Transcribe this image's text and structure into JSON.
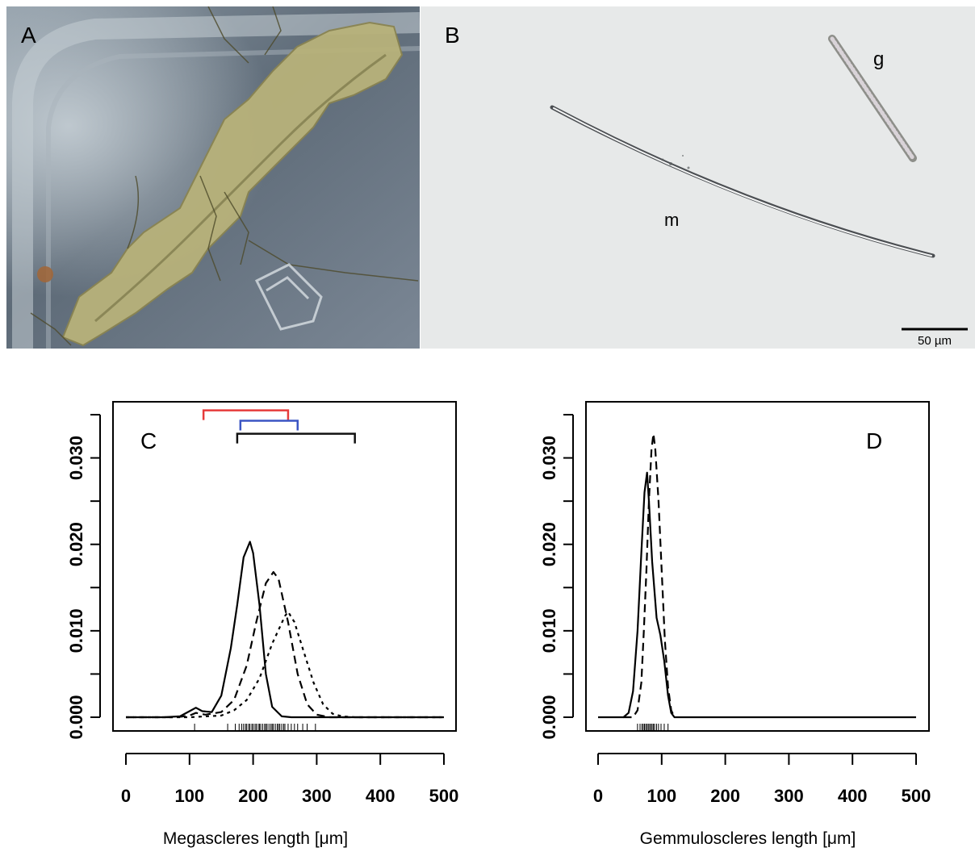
{
  "photo_panels": {
    "a": {
      "letter": "A"
    },
    "b": {
      "letter": "B",
      "label_m": "m",
      "label_g": "g",
      "scale_bar": "50 µm"
    }
  },
  "chart_data": [
    {
      "type": "line",
      "panel_letter": "C",
      "xlabel": "Megascleres length [μm]",
      "ylabel": "",
      "xlim": [
        0,
        500
      ],
      "ylim": [
        0,
        0.035
      ],
      "xticks": [
        0,
        100,
        200,
        300,
        400,
        500
      ],
      "yticks": [
        0.0,
        0.005,
        0.01,
        0.015,
        0.02,
        0.025,
        0.03,
        0.035
      ],
      "ytick_labels": [
        "0.000",
        "",
        "0.010",
        "",
        "0.020",
        "",
        "0.030",
        ""
      ],
      "series": [
        {
          "style": "solid",
          "points": [
            [
              0,
              0
            ],
            [
              60,
              0
            ],
            [
              85,
              0.0001
            ],
            [
              100,
              0.0007
            ],
            [
              110,
              0.0011
            ],
            [
              120,
              0.0007
            ],
            [
              135,
              0.0006
            ],
            [
              150,
              0.0025
            ],
            [
              165,
              0.008
            ],
            [
              175,
              0.013
            ],
            [
              185,
              0.0185
            ],
            [
              195,
              0.0203
            ],
            [
              200,
              0.019
            ],
            [
              210,
              0.013
            ],
            [
              220,
              0.005
            ],
            [
              230,
              0.0012
            ],
            [
              245,
              0.0001
            ],
            [
              260,
              0
            ],
            [
              500,
              0
            ]
          ]
        },
        {
          "style": "dashed",
          "points": [
            [
              0,
              0
            ],
            [
              80,
              0
            ],
            [
              100,
              0.0002
            ],
            [
              110,
              0.0005
            ],
            [
              125,
              0.0003
            ],
            [
              150,
              0.0006
            ],
            [
              170,
              0.002
            ],
            [
              190,
              0.006
            ],
            [
              205,
              0.011
            ],
            [
              220,
              0.0155
            ],
            [
              232,
              0.0168
            ],
            [
              240,
              0.016
            ],
            [
              255,
              0.011
            ],
            [
              270,
              0.005
            ],
            [
              285,
              0.0015
            ],
            [
              300,
              0.0003
            ],
            [
              320,
              0
            ],
            [
              500,
              0
            ]
          ]
        },
        {
          "style": "dotted",
          "points": [
            [
              0,
              0
            ],
            [
              100,
              0
            ],
            [
              150,
              0.0002
            ],
            [
              170,
              0.0008
            ],
            [
              190,
              0.002
            ],
            [
              210,
              0.0045
            ],
            [
              230,
              0.0085
            ],
            [
              250,
              0.0117
            ],
            [
              255,
              0.0122
            ],
            [
              265,
              0.011
            ],
            [
              280,
              0.0075
            ],
            [
              295,
              0.004
            ],
            [
              310,
              0.0015
            ],
            [
              325,
              0.0004
            ],
            [
              340,
              0.0001
            ],
            [
              360,
              0
            ],
            [
              500,
              0
            ]
          ]
        }
      ],
      "ranges": [
        {
          "color": "#e63b3b",
          "from": 122,
          "to": 255,
          "level": 0.0355
        },
        {
          "color": "#3b55c4",
          "from": 180,
          "to": 270,
          "level": 0.0343
        },
        {
          "color": "#111111",
          "from": 175,
          "to": 360,
          "level": 0.0328
        }
      ],
      "rug": [
        108,
        160,
        172,
        178,
        182,
        185,
        188,
        190,
        193,
        195,
        198,
        200,
        203,
        205,
        208,
        210,
        212,
        215,
        218,
        220,
        222,
        225,
        228,
        230,
        232,
        235,
        238,
        240,
        242,
        245,
        248,
        250,
        255,
        260,
        265,
        270,
        278,
        285,
        298
      ]
    },
    {
      "type": "line",
      "panel_letter": "D",
      "xlabel": "Gemmuloscleres length [μm]",
      "ylabel": "",
      "xlim": [
        0,
        500
      ],
      "ylim": [
        0,
        0.035
      ],
      "xticks": [
        0,
        100,
        200,
        300,
        400,
        500
      ],
      "yticks": [
        0.0,
        0.005,
        0.01,
        0.015,
        0.02,
        0.025,
        0.03,
        0.035
      ],
      "ytick_labels": [
        "0.000",
        "",
        "0.010",
        "",
        "0.020",
        "",
        "0.030",
        ""
      ],
      "series": [
        {
          "style": "solid",
          "points": [
            [
              0,
              0
            ],
            [
              40,
              0
            ],
            [
              48,
              0.0005
            ],
            [
              55,
              0.003
            ],
            [
              62,
              0.01
            ],
            [
              68,
              0.019
            ],
            [
              73,
              0.026
            ],
            [
              77,
              0.0283
            ],
            [
              80,
              0.025
            ],
            [
              85,
              0.018
            ],
            [
              92,
              0.0115
            ],
            [
              98,
              0.0095
            ],
            [
              104,
              0.0065
            ],
            [
              110,
              0.0025
            ],
            [
              115,
              0.0005
            ],
            [
              120,
              0
            ],
            [
              500,
              0
            ]
          ]
        },
        {
          "style": "dashed",
          "points": [
            [
              40,
              0
            ],
            [
              55,
              0
            ],
            [
              62,
              0.0008
            ],
            [
              68,
              0.004
            ],
            [
              72,
              0.01
            ],
            [
              76,
              0.017
            ],
            [
              80,
              0.025
            ],
            [
              84,
              0.031
            ],
            [
              87,
              0.0328
            ],
            [
              90,
              0.031
            ],
            [
              95,
              0.025
            ],
            [
              100,
              0.017
            ],
            [
              105,
              0.009
            ],
            [
              110,
              0.0035
            ],
            [
              115,
              0.0008
            ],
            [
              120,
              0
            ]
          ]
        }
      ],
      "ranges": [],
      "rug": [
        62,
        66,
        69,
        71,
        73,
        75,
        77,
        79,
        81,
        83,
        85,
        87,
        89,
        92,
        95,
        99,
        104,
        110
      ]
    }
  ]
}
